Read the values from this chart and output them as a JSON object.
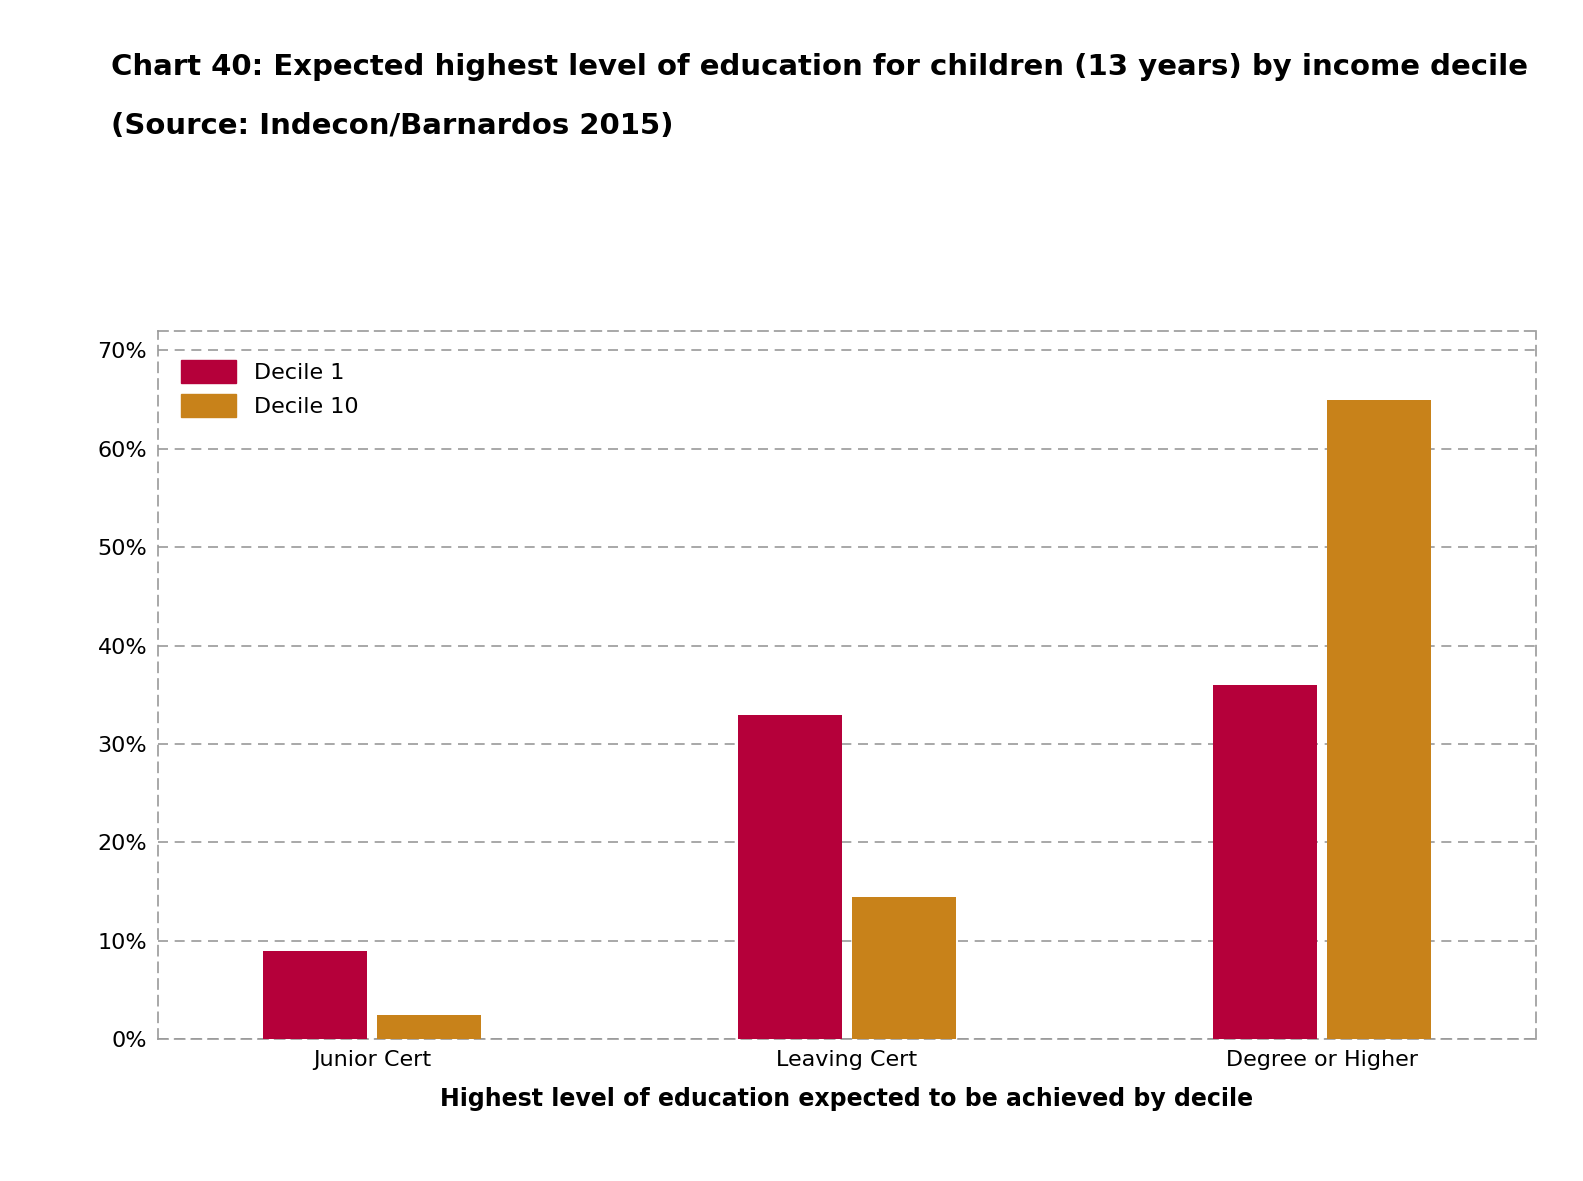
{
  "title_line1": "Chart 40: Expected highest level of education for children (13 years) by income decile",
  "title_line2": "(Source: Indecon/Barnardos 2015)",
  "categories": [
    "Junior Cert",
    "Leaving Cert",
    "Degree or Higher"
  ],
  "decile1_values": [
    0.09,
    0.33,
    0.36
  ],
  "decile10_values": [
    0.025,
    0.145,
    0.65
  ],
  "decile1_color": "#B5003A",
  "decile10_color": "#C8821A",
  "decile1_label": "Decile 1",
  "decile10_label": "Decile 10",
  "xlabel": "Highest level of education expected to be achieved by decile",
  "ylim": [
    0,
    0.72
  ],
  "yticks": [
    0.0,
    0.1,
    0.2,
    0.3,
    0.4,
    0.5,
    0.6,
    0.7
  ],
  "ytick_labels": [
    "0%",
    "10%",
    "20%",
    "30%",
    "40%",
    "50%",
    "60%",
    "70%"
  ],
  "background_color": "#ffffff",
  "grid_color": "#999999",
  "title_fontsize": 21,
  "axis_label_fontsize": 17,
  "tick_fontsize": 16,
  "legend_fontsize": 16
}
